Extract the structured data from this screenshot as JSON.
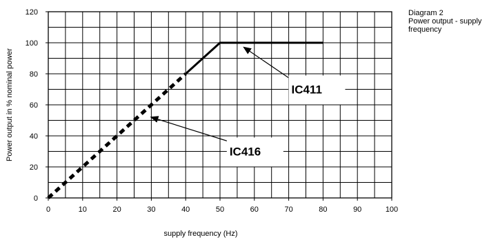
{
  "side_note": {
    "line1": "Diagram 2",
    "line2": "Power output - supply",
    "line3": "frequency"
  },
  "chart_data": {
    "type": "line",
    "xlabel": "supply frequency (Hz)",
    "ylabel": "Power output in % nominal power",
    "xlim": [
      0,
      100
    ],
    "ylim": [
      0,
      120
    ],
    "x_ticks": [
      0,
      10,
      20,
      30,
      40,
      50,
      60,
      70,
      80,
      90,
      100
    ],
    "y_ticks": [
      0,
      20,
      40,
      60,
      80,
      100,
      120
    ],
    "grid": true,
    "series": [
      {
        "name": "IC416",
        "style": "dashed",
        "color": "#000000",
        "x": [
          0,
          40
        ],
        "y": [
          0,
          80
        ]
      },
      {
        "name": "IC411",
        "style": "solid",
        "color": "#000000",
        "x": [
          40,
          50,
          80
        ],
        "y": [
          80,
          100,
          100
        ]
      }
    ],
    "annotations": [
      {
        "text": "IC411",
        "box_at": [
          76,
          70
        ],
        "points_to": [
          57,
          97
        ]
      },
      {
        "text": "IC416",
        "box_at": [
          58,
          30
        ],
        "points_to": [
          30,
          52
        ]
      }
    ]
  }
}
